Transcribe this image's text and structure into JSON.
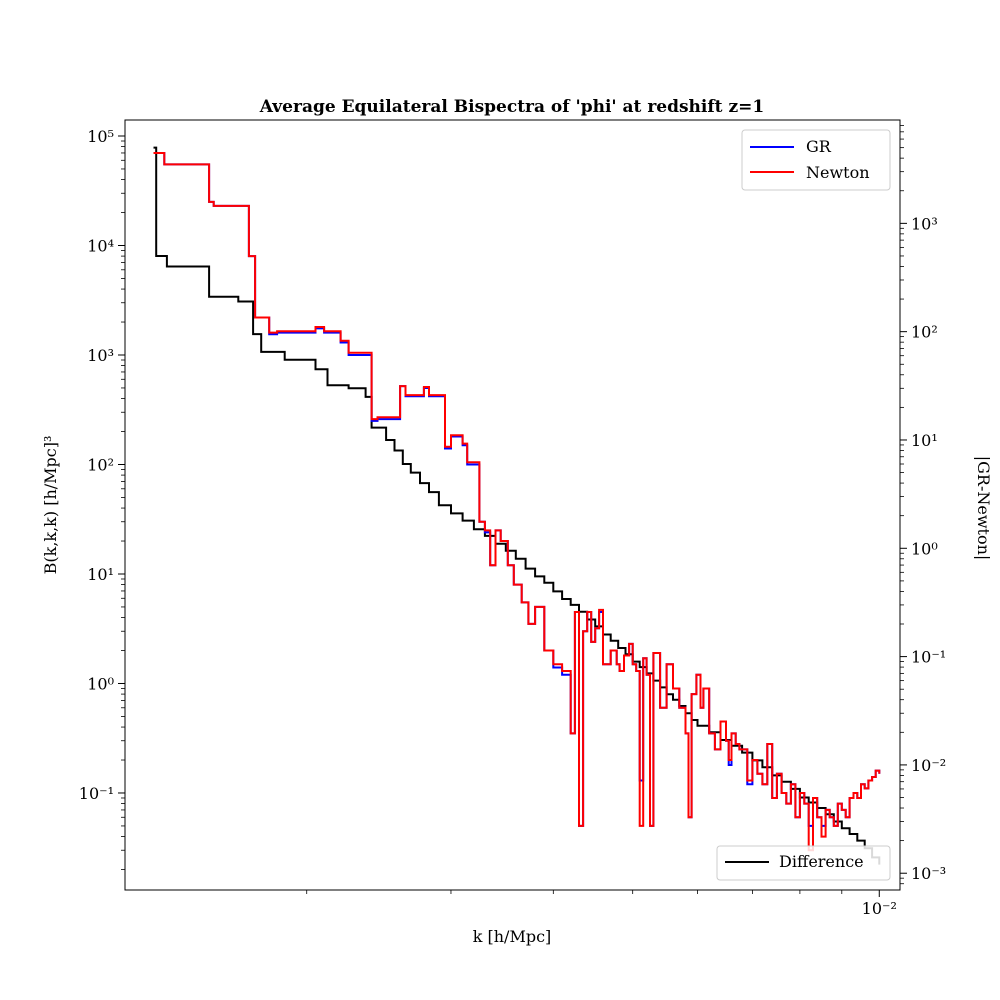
{
  "chart_data": {
    "type": "line",
    "title": "Average Equilateral Bispectra of 'phi' at redshift z=1",
    "xlabel": "k [h/Mpc]",
    "ylabel": "B(k,k,k) [h/Mpc]³",
    "y2label": "|GR-Newton|",
    "xscale": "log",
    "yscale": "log",
    "y2scale": "log",
    "xlim": [
      0.0012,
      0.0106
    ],
    "ylim": [
      0.013,
      140000
    ],
    "y2lim": [
      0.0007,
      9000
    ],
    "x_tick_labels": [
      {
        "value": 0.01,
        "text": "10⁻²"
      }
    ],
    "x_minor_ticks": [
      0.002,
      0.003,
      0.004,
      0.005,
      0.006,
      0.007,
      0.008,
      0.009
    ],
    "y_tick_labels": [
      {
        "value": 0.1,
        "text": "10⁻¹"
      },
      {
        "value": 1,
        "text": "10⁰"
      },
      {
        "value": 10,
        "text": "10¹"
      },
      {
        "value": 100,
        "text": "10²"
      },
      {
        "value": 1000,
        "text": "10³"
      },
      {
        "value": 10000,
        "text": "10⁴"
      },
      {
        "value": 100000,
        "text": "10⁵"
      }
    ],
    "y2_tick_labels": [
      {
        "value": 0.001,
        "text": "10⁻³"
      },
      {
        "value": 0.01,
        "text": "10⁻²"
      },
      {
        "value": 0.1,
        "text": "10⁻¹"
      },
      {
        "value": 1,
        "text": "10⁰"
      },
      {
        "value": 10,
        "text": "10¹"
      },
      {
        "value": 100,
        "text": "10²"
      },
      {
        "value": 1000,
        "text": "10³"
      }
    ],
    "legend_main": {
      "placement": "upper right",
      "entries": [
        "GR",
        "Newton"
      ]
    },
    "legend_secondary": {
      "placement": "lower right",
      "entries": [
        "Difference"
      ]
    },
    "colors": {
      "GR": "#0000ff",
      "Newton": "#ff0000",
      "Difference": "#000000"
    },
    "series": [
      {
        "name": "GR",
        "axis": "left",
        "step": true,
        "x": [
          0.0013,
          0.00134,
          0.00152,
          0.00154,
          0.0017,
          0.00173,
          0.0018,
          0.00184,
          0.00205,
          0.0021,
          0.0022,
          0.00225,
          0.0024,
          0.00244,
          0.0026,
          0.00264,
          0.00278,
          0.00282,
          0.00295,
          0.003,
          0.0031,
          0.00314,
          0.00325,
          0.0033,
          0.00335,
          0.0034,
          0.00345,
          0.00352,
          0.00358,
          0.00366,
          0.00373,
          0.0038,
          0.0039,
          0.004,
          0.0041,
          0.0042,
          0.00425,
          0.0043,
          0.00435,
          0.0044,
          0.00445,
          0.0045,
          0.00455,
          0.0046,
          0.0047,
          0.00478,
          0.00482,
          0.00488,
          0.00495,
          0.005,
          0.00505,
          0.0051,
          0.00515,
          0.0052,
          0.00525,
          0.0053,
          0.0054,
          0.0055,
          0.0056,
          0.0057,
          0.0058,
          0.00585,
          0.0059,
          0.00598,
          0.00605,
          0.0061,
          0.0062,
          0.0063,
          0.0064,
          0.0065,
          0.00655,
          0.0066,
          0.00668,
          0.00675,
          0.0069,
          0.007,
          0.0071,
          0.0072,
          0.0073,
          0.0074,
          0.0075,
          0.0076,
          0.0077,
          0.0078,
          0.0079,
          0.008,
          0.0081,
          0.0082,
          0.0083,
          0.0084,
          0.0085,
          0.0086,
          0.0087,
          0.0088,
          0.0089,
          0.009,
          0.0091,
          0.0092,
          0.0093,
          0.0094,
          0.0095,
          0.0096,
          0.0097,
          0.0098,
          0.0099,
          0.01
        ],
        "values": [
          70000,
          55000,
          25000,
          23000,
          8000,
          2200,
          1550,
          1600,
          1750,
          1600,
          1300,
          1000,
          250,
          260,
          520,
          420,
          500,
          420,
          140,
          180,
          150,
          100,
          30,
          24,
          12,
          25,
          20,
          12,
          8,
          5.5,
          3.5,
          5,
          2,
          1.4,
          1.2,
          0.35,
          4.5,
          0.05,
          3,
          4.5,
          2.4,
          3.2,
          4.5,
          1.5,
          2,
          1.5,
          1.3,
          1.8,
          2.3,
          1.5,
          1.3,
          0.13,
          1.7,
          1.2,
          0.05,
          1.9,
          0.6,
          1.5,
          0.9,
          0.6,
          0.35,
          0.06,
          0.8,
          1.2,
          0.6,
          0.9,
          0.35,
          0.25,
          0.45,
          0.3,
          0.18,
          0.35,
          0.28,
          0.25,
          0.12,
          0.2,
          0.15,
          0.12,
          0.28,
          0.09,
          0.15,
          0.1,
          0.08,
          0.12,
          0.06,
          0.1,
          0.08,
          0.05,
          0.09,
          0.06,
          0.05,
          0.07,
          0.06,
          0.05,
          0.08,
          0.07,
          0.06,
          0.09,
          0.1,
          0.09,
          0.12,
          0.11,
          0.13,
          0.14,
          0.16,
          0.15
        ]
      },
      {
        "name": "Newton",
        "axis": "left",
        "step": true,
        "x": [
          0.0013,
          0.00134,
          0.00152,
          0.00154,
          0.0017,
          0.00173,
          0.0018,
          0.00184,
          0.00205,
          0.0021,
          0.0022,
          0.00225,
          0.0024,
          0.00244,
          0.0026,
          0.00264,
          0.00278,
          0.00282,
          0.00295,
          0.003,
          0.0031,
          0.00314,
          0.00325,
          0.0033,
          0.00335,
          0.0034,
          0.00345,
          0.00352,
          0.00358,
          0.00366,
          0.00373,
          0.0038,
          0.0039,
          0.004,
          0.0041,
          0.0042,
          0.00425,
          0.0043,
          0.00435,
          0.0044,
          0.00445,
          0.0045,
          0.00455,
          0.0046,
          0.0047,
          0.00478,
          0.00482,
          0.00488,
          0.00495,
          0.005,
          0.00505,
          0.0051,
          0.00515,
          0.0052,
          0.00525,
          0.0053,
          0.0054,
          0.0055,
          0.0056,
          0.0057,
          0.0058,
          0.00585,
          0.0059,
          0.00598,
          0.00605,
          0.0061,
          0.0062,
          0.0063,
          0.0064,
          0.0065,
          0.00655,
          0.0066,
          0.00668,
          0.00675,
          0.0069,
          0.007,
          0.0071,
          0.0072,
          0.0073,
          0.0074,
          0.0075,
          0.0076,
          0.0077,
          0.0078,
          0.0079,
          0.008,
          0.0081,
          0.0082,
          0.0083,
          0.0084,
          0.0085,
          0.0086,
          0.0087,
          0.0088,
          0.0089,
          0.009,
          0.0091,
          0.0092,
          0.0093,
          0.0094,
          0.0095,
          0.0096,
          0.0097,
          0.0098,
          0.0099,
          0.01
        ],
        "values": [
          70000,
          55000,
          25000,
          23000,
          8000,
          2200,
          1600,
          1650,
          1800,
          1650,
          1350,
          1050,
          260,
          270,
          520,
          430,
          510,
          430,
          145,
          185,
          155,
          105,
          30,
          25,
          12,
          25,
          20,
          12,
          8,
          5.5,
          3.5,
          5,
          2,
          1.5,
          1.3,
          0.35,
          4.5,
          0.05,
          3,
          4.5,
          2.4,
          3.2,
          4.7,
          1.5,
          2,
          1.5,
          1.3,
          1.8,
          2.3,
          1.5,
          1.3,
          0.05,
          1.7,
          1.2,
          0.05,
          1.9,
          0.6,
          1.5,
          0.9,
          0.6,
          0.35,
          0.06,
          0.8,
          1.2,
          0.6,
          0.9,
          0.35,
          0.25,
          0.45,
          0.3,
          0.2,
          0.35,
          0.28,
          0.25,
          0.13,
          0.2,
          0.15,
          0.12,
          0.28,
          0.09,
          0.15,
          0.1,
          0.08,
          0.12,
          0.06,
          0.1,
          0.08,
          0.03,
          0.09,
          0.06,
          0.04,
          0.07,
          0.06,
          0.05,
          0.08,
          0.07,
          0.06,
          0.09,
          0.1,
          0.09,
          0.12,
          0.11,
          0.13,
          0.14,
          0.16,
          0.15
        ]
      },
      {
        "name": "Difference",
        "axis": "right",
        "step": true,
        "x": [
          0.0013,
          0.00131,
          0.00135,
          0.00152,
          0.00165,
          0.00172,
          0.00176,
          0.00188,
          0.00205,
          0.00212,
          0.00225,
          0.00236,
          0.0024,
          0.0025,
          0.00256,
          0.00262,
          0.00268,
          0.00275,
          0.00282,
          0.0029,
          0.003,
          0.0031,
          0.0032,
          0.0033,
          0.0034,
          0.0035,
          0.0036,
          0.0037,
          0.0038,
          0.0039,
          0.004,
          0.0041,
          0.0042,
          0.0043,
          0.0044,
          0.0045,
          0.0046,
          0.0047,
          0.0048,
          0.0049,
          0.005,
          0.0051,
          0.0052,
          0.0053,
          0.0054,
          0.0055,
          0.0056,
          0.0057,
          0.0058,
          0.0059,
          0.006,
          0.0062,
          0.0064,
          0.0066,
          0.0068,
          0.007,
          0.0072,
          0.0074,
          0.0076,
          0.0078,
          0.008,
          0.0082,
          0.0084,
          0.0086,
          0.0088,
          0.009,
          0.0092,
          0.0094,
          0.0096,
          0.0098,
          0.01
        ],
        "values": [
          5000,
          500,
          400,
          210,
          190,
          95,
          65,
          55,
          45,
          32,
          30,
          25,
          13,
          10,
          8,
          6,
          5,
          4,
          3.3,
          2.5,
          2.1,
          1.8,
          1.5,
          1.3,
          1.1,
          0.95,
          0.8,
          0.65,
          0.55,
          0.48,
          0.4,
          0.34,
          0.3,
          0.26,
          0.22,
          0.19,
          0.16,
          0.14,
          0.12,
          0.105,
          0.09,
          0.08,
          0.07,
          0.06,
          0.052,
          0.045,
          0.04,
          0.035,
          0.03,
          0.026,
          0.023,
          0.02,
          0.017,
          0.015,
          0.013,
          0.011,
          0.0095,
          0.008,
          0.007,
          0.006,
          0.005,
          0.0045,
          0.004,
          0.0035,
          0.003,
          0.0026,
          0.0023,
          0.002,
          0.0017,
          0.0014,
          0.0012
        ]
      }
    ]
  }
}
